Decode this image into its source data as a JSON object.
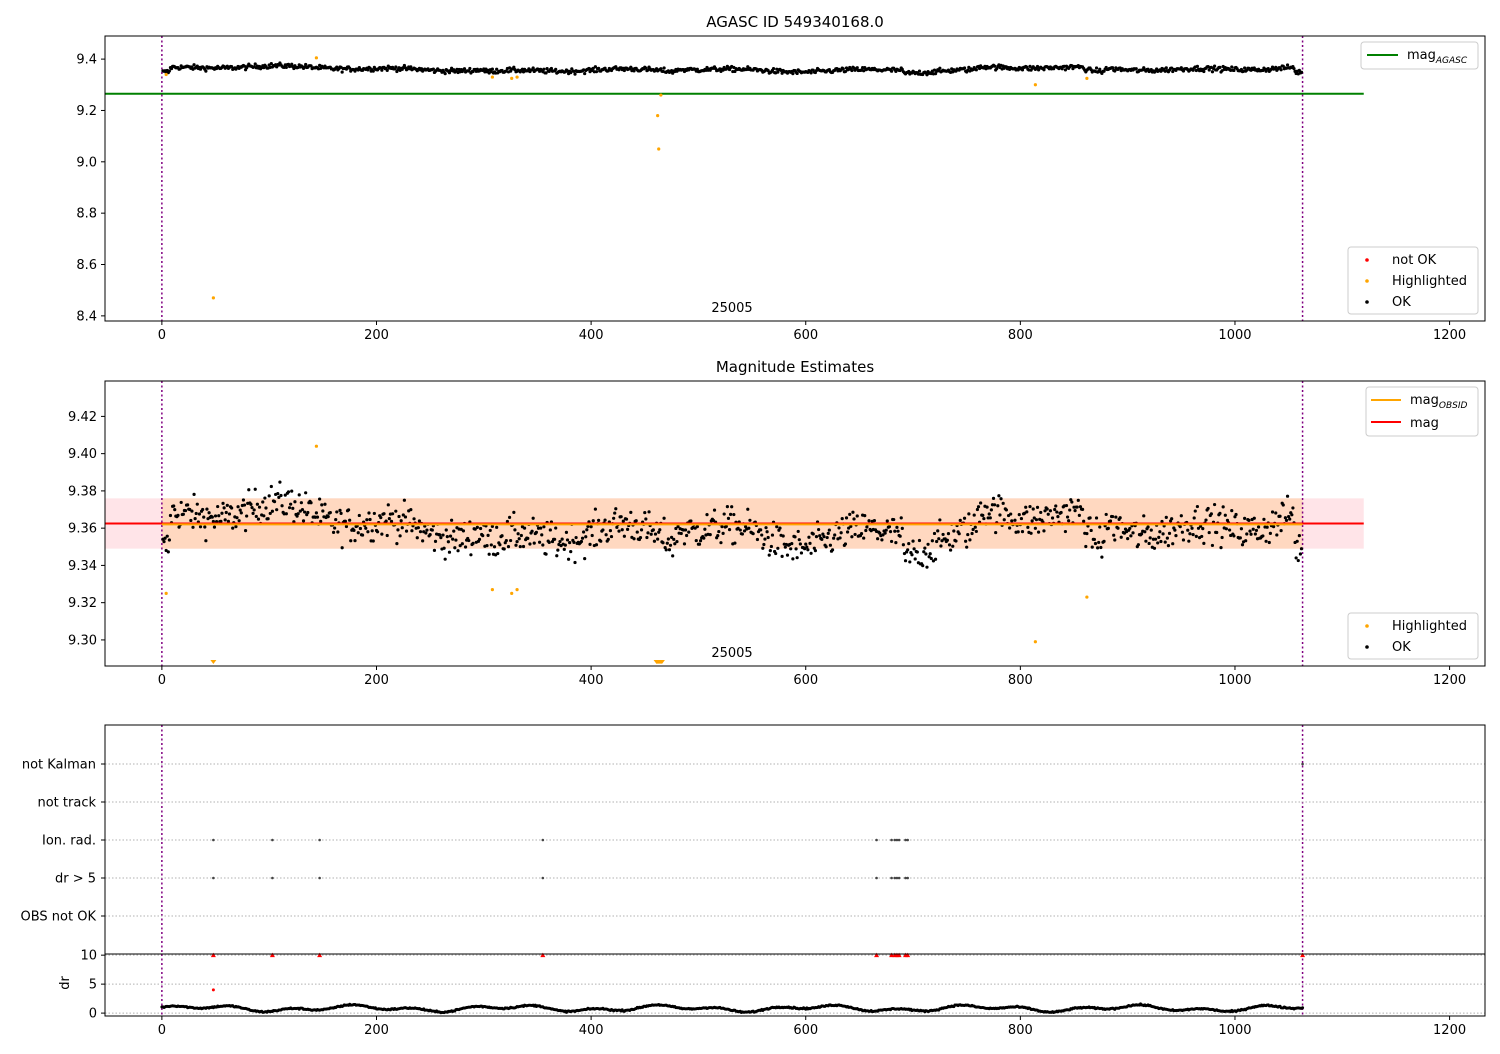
{
  "chart_data": [
    {
      "type": "scatter",
      "title": "AGASC ID 549340168.0",
      "xlim": [
        -53,
        1233
      ],
      "ylim": [
        8.38,
        9.49
      ],
      "x_ticks": [
        "0",
        "200",
        "400",
        "600",
        "800",
        "1000",
        "1200"
      ],
      "y_ticks": [
        "8.4",
        "8.6",
        "8.8",
        "9.0",
        "9.2",
        "9.4"
      ],
      "obsid_label": "25005",
      "obs_boundaries": [
        0,
        1063
      ],
      "reference_line": {
        "name": "mag",
        "sub": "AGASC",
        "value": 9.265,
        "x_range": [
          -53,
          1120
        ],
        "color": "#008000"
      },
      "series": [
        {
          "name": "not OK",
          "color": "#ff0000",
          "points": []
        },
        {
          "name": "Highlighted",
          "color": "#ffa500",
          "points": [
            [
              4,
              9.34
            ],
            [
              48,
              8.47
            ],
            [
              144,
              9.405
            ],
            [
              308,
              9.33
            ],
            [
              326,
              9.325
            ],
            [
              331,
              9.33
            ],
            [
              462,
              9.18
            ],
            [
              463,
              9.05
            ],
            [
              465,
              9.26
            ],
            [
              814,
              9.3
            ],
            [
              862,
              9.325
            ]
          ]
        },
        {
          "name": "OK",
          "color": "#000000",
          "band": {
            "x_range": [
              0,
              1063
            ],
            "baseline": 9.362,
            "amplitude": 0.03
          }
        }
      ],
      "legend": [
        {
          "position": "top-right",
          "entries": [
            "mag_AGASC"
          ]
        },
        {
          "position": "bottom-right",
          "entries": [
            "not OK",
            "Highlighted",
            "OK"
          ]
        }
      ]
    },
    {
      "type": "scatter",
      "title": "Magnitude Estimates",
      "xlim": [
        -53,
        1233
      ],
      "ylim": [
        9.286,
        9.439
      ],
      "x_ticks": [
        "0",
        "200",
        "400",
        "600",
        "800",
        "1000",
        "1200"
      ],
      "y_ticks": [
        "9.30",
        "9.32",
        "9.34",
        "9.36",
        "9.38",
        "9.40",
        "9.42"
      ],
      "obsid_label": "25005",
      "obs_boundaries": [
        0,
        1063
      ],
      "mean_line": {
        "name": "mag",
        "value": 9.3625,
        "x_range": [
          -53,
          1120
        ],
        "band": [
          9.349,
          9.376
        ],
        "color": "#ff0000",
        "band_color": "#ffe4e8"
      },
      "obsid_line": {
        "name": "mag",
        "sub": "OBSID",
        "value": 9.362,
        "x_range": [
          0,
          1063
        ],
        "band": [
          9.349,
          9.376
        ],
        "color": "#ffa500",
        "band_color": "#ffd8c0"
      },
      "series": [
        {
          "name": "Highlighted",
          "color": "#ffa500",
          "points": [
            [
              4,
              9.325
            ],
            [
              144,
              9.404
            ],
            [
              308,
              9.327
            ],
            [
              326,
              9.325
            ],
            [
              331,
              9.327
            ],
            [
              814,
              9.299
            ],
            [
              862,
              9.323
            ]
          ],
          "below_range_x": [
            48,
            461,
            462,
            463,
            464,
            465,
            466
          ]
        },
        {
          "name": "OK",
          "color": "#000000",
          "band": {
            "x_range": [
              0,
              1063
            ],
            "baseline": 9.362,
            "amplitude": 0.03
          }
        }
      ],
      "legend": [
        {
          "position": "top-right",
          "entries": [
            "mag_OBSID",
            "mag"
          ]
        },
        {
          "position": "bottom-right",
          "entries": [
            "Highlighted",
            "OK"
          ]
        }
      ]
    },
    {
      "type": "scatter",
      "xlim": [
        -53,
        1233
      ],
      "x_ticks": [
        "0",
        "200",
        "400",
        "600",
        "800",
        "1000",
        "1200"
      ],
      "obs_boundaries": [
        0,
        1063
      ],
      "flag_categories": [
        "not Kalman",
        "not track",
        "Ion. rad.",
        "dr > 5",
        "OBS not OK"
      ],
      "flag_points": {
        "not Kalman": [
          1063
        ],
        "not track": [],
        "Ion. rad.": [
          48,
          103,
          147,
          355,
          666,
          680,
          683,
          685,
          687,
          693,
          695
        ],
        "dr > 5": [
          48,
          103,
          147,
          355,
          666,
          680,
          683,
          685,
          687,
          693,
          695
        ],
        "OBS not OK": []
      }
    },
    {
      "type": "scatter",
      "ylabel": "dr",
      "xlim": [
        -53,
        1233
      ],
      "ylim": [
        -0.5,
        10.2
      ],
      "x_ticks": [
        "0",
        "200",
        "400",
        "600",
        "800",
        "1000",
        "1200"
      ],
      "y_ticks": [
        "0",
        "5",
        "10"
      ],
      "obs_boundaries": [
        0,
        1063
      ],
      "clipped_points": {
        "color": "#ff0000",
        "value": 10,
        "x": [
          48,
          103,
          147,
          355,
          666,
          680,
          683,
          685,
          687,
          693,
          695,
          1063
        ]
      },
      "extra_points": [
        [
          48,
          4.0
        ]
      ],
      "dr_band": {
        "x_range": [
          0,
          1063
        ],
        "mean": 0.8,
        "amplitude": 0.7
      }
    }
  ]
}
